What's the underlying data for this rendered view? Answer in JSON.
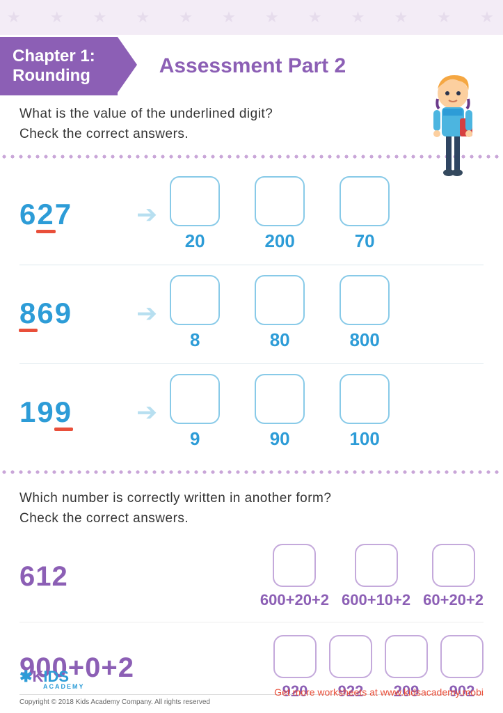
{
  "header": {
    "chapter_line1": "Chapter 1:",
    "chapter_line2": "Rounding",
    "assessment_title": "Assessment Part 2"
  },
  "colors": {
    "primary_purple": "#8c5fb5",
    "primary_blue": "#2d9cd7",
    "box_blue": "#88cae8",
    "box_purple": "#c4a9db",
    "underline_red": "#e94f3a",
    "arrow_blue": "#b7dff0",
    "star_bg": "#f3ecf6",
    "star_color": "#e6dcec",
    "dot_color": "#c9a6d8"
  },
  "section1": {
    "instruction_l1": "What is the value of the underlined digit?",
    "instruction_l2": "Check the correct answers.",
    "rows": [
      {
        "digits": [
          "6",
          "2",
          "7"
        ],
        "underlined_index": 1,
        "options": [
          "20",
          "200",
          "70"
        ]
      },
      {
        "digits": [
          "8",
          "6",
          "9"
        ],
        "underlined_index": 0,
        "options": [
          "8",
          "80",
          "800"
        ]
      },
      {
        "digits": [
          "1",
          "9",
          "9"
        ],
        "underlined_index": 2,
        "options": [
          "9",
          "90",
          "100"
        ]
      }
    ]
  },
  "section2": {
    "instruction_l1": "Which number is correctly written in another form?",
    "instruction_l2": "Check the correct answers.",
    "rows": [
      {
        "prompt": "612",
        "options": [
          "600+20+2",
          "600+10+2",
          "60+20+2"
        ]
      },
      {
        "prompt": "900+0+2",
        "options": [
          "920",
          "922",
          "209",
          "902"
        ]
      }
    ]
  },
  "footer": {
    "logo_main": "KIDS",
    "logo_sub": "ACADEMY",
    "copyright": "Copyright © 2018 Kids Academy Company. All rights reserved",
    "promo": "Get more worksheets at www.kidsacademy.mobi"
  }
}
